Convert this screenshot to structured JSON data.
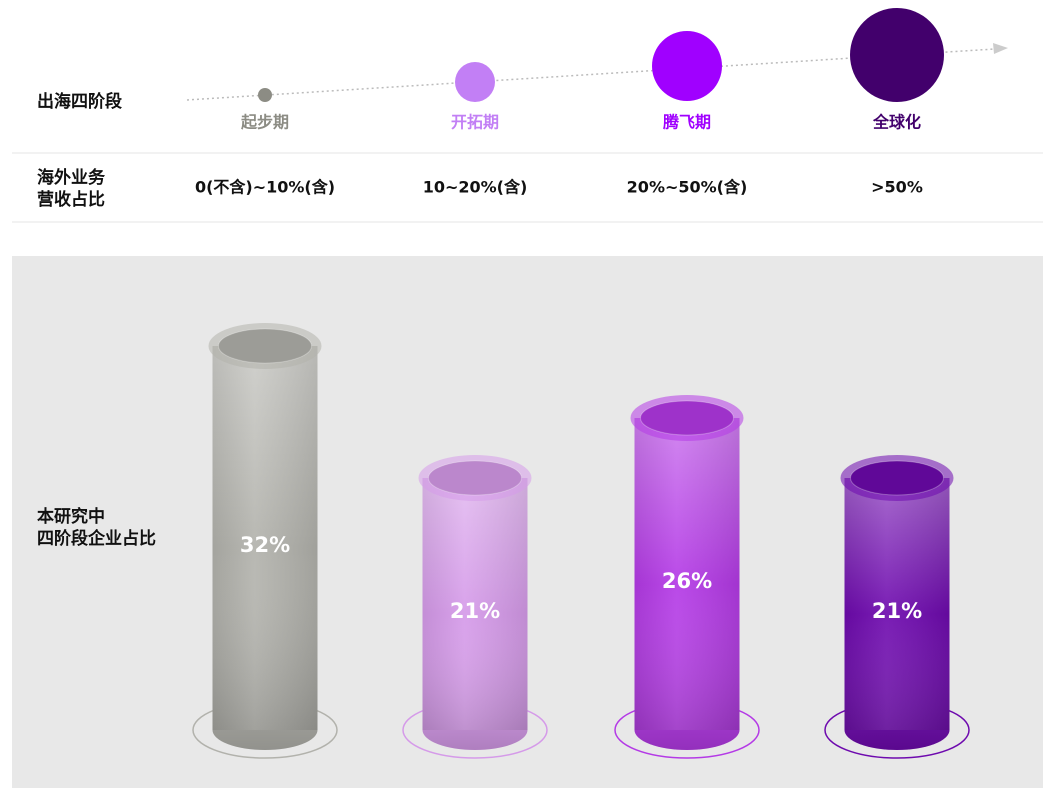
{
  "chart_data": {
    "type": "bar",
    "stage_row_label": "出海四阶段",
    "categories": [
      "起步期",
      "开拓期",
      "腾飞期",
      "全球化"
    ],
    "stage_colors": [
      "#8c8c84",
      "#c27ff5",
      "#a000ff",
      "#42006c"
    ],
    "revenue_row_label": [
      "海外业务",
      "营收占比"
    ],
    "revenue_ranges": [
      "0(不含)~10%(含)",
      "10~20%(含)",
      "20%~50%(含)",
      ">50%"
    ],
    "y_label": [
      "本研究中",
      "四阶段企业占比"
    ],
    "values": [
      32,
      21,
      26,
      21
    ],
    "value_labels": [
      "32%",
      "21%",
      "26%",
      "21%"
    ],
    "colors": [
      "#b2b2ac",
      "#d59ae9",
      "#b43ae6",
      "#6e0aae"
    ]
  }
}
